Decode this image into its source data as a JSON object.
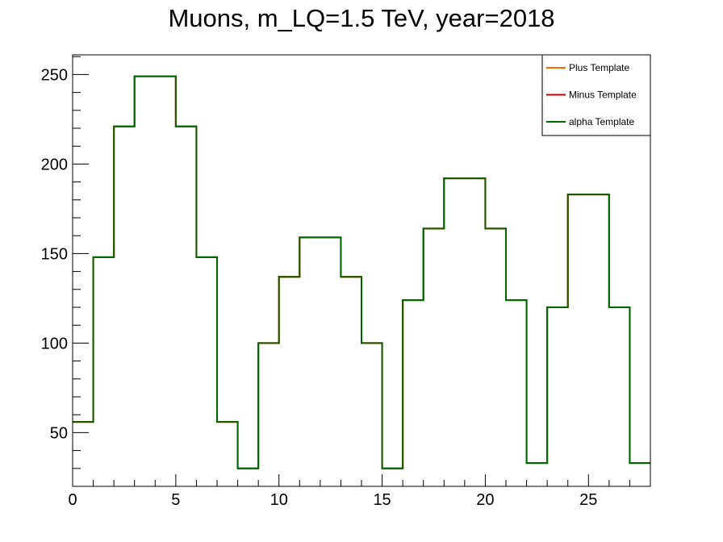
{
  "chart_data": {
    "type": "line",
    "step": true,
    "title": "Muons, m_LQ=1.5 TeV, year=2018",
    "xlabel": "",
    "ylabel": "",
    "xlim": [
      0,
      28
    ],
    "ylim": [
      20,
      261
    ],
    "x_ticks": [
      0,
      5,
      10,
      15,
      20,
      25
    ],
    "y_ticks": [
      50,
      100,
      150,
      200,
      250
    ],
    "grid": false,
    "legend_position": "top-right",
    "bin_edges": [
      0,
      1,
      2,
      3,
      4,
      5,
      6,
      7,
      8,
      9,
      10,
      11,
      12,
      13,
      14,
      15,
      16,
      17,
      18,
      19,
      20,
      21,
      22,
      23,
      24,
      25,
      26,
      27,
      28
    ],
    "series": [
      {
        "name": "Plus Template",
        "color": "#ff6600",
        "values": [
          56,
          148,
          221,
          249,
          249,
          221,
          148,
          56,
          30,
          100,
          137,
          159,
          159,
          137,
          100,
          30,
          124,
          164,
          192,
          192,
          164,
          124,
          33,
          120,
          183,
          183,
          120,
          33
        ]
      },
      {
        "name": "Minus Template",
        "color": "#cc0000",
        "values": [
          56,
          148,
          221,
          249,
          249,
          221,
          148,
          56,
          30,
          100,
          137,
          159,
          159,
          137,
          100,
          30,
          124,
          164,
          192,
          192,
          164,
          124,
          33,
          120,
          183,
          183,
          120,
          33
        ]
      },
      {
        "name": "alpha Template",
        "color": "#006600",
        "values": [
          56,
          148,
          221,
          249,
          249,
          221,
          148,
          56,
          30,
          100,
          137,
          159,
          159,
          137,
          100,
          30,
          124,
          164,
          192,
          192,
          164,
          124,
          33,
          120,
          183,
          183,
          120,
          33
        ]
      }
    ]
  }
}
